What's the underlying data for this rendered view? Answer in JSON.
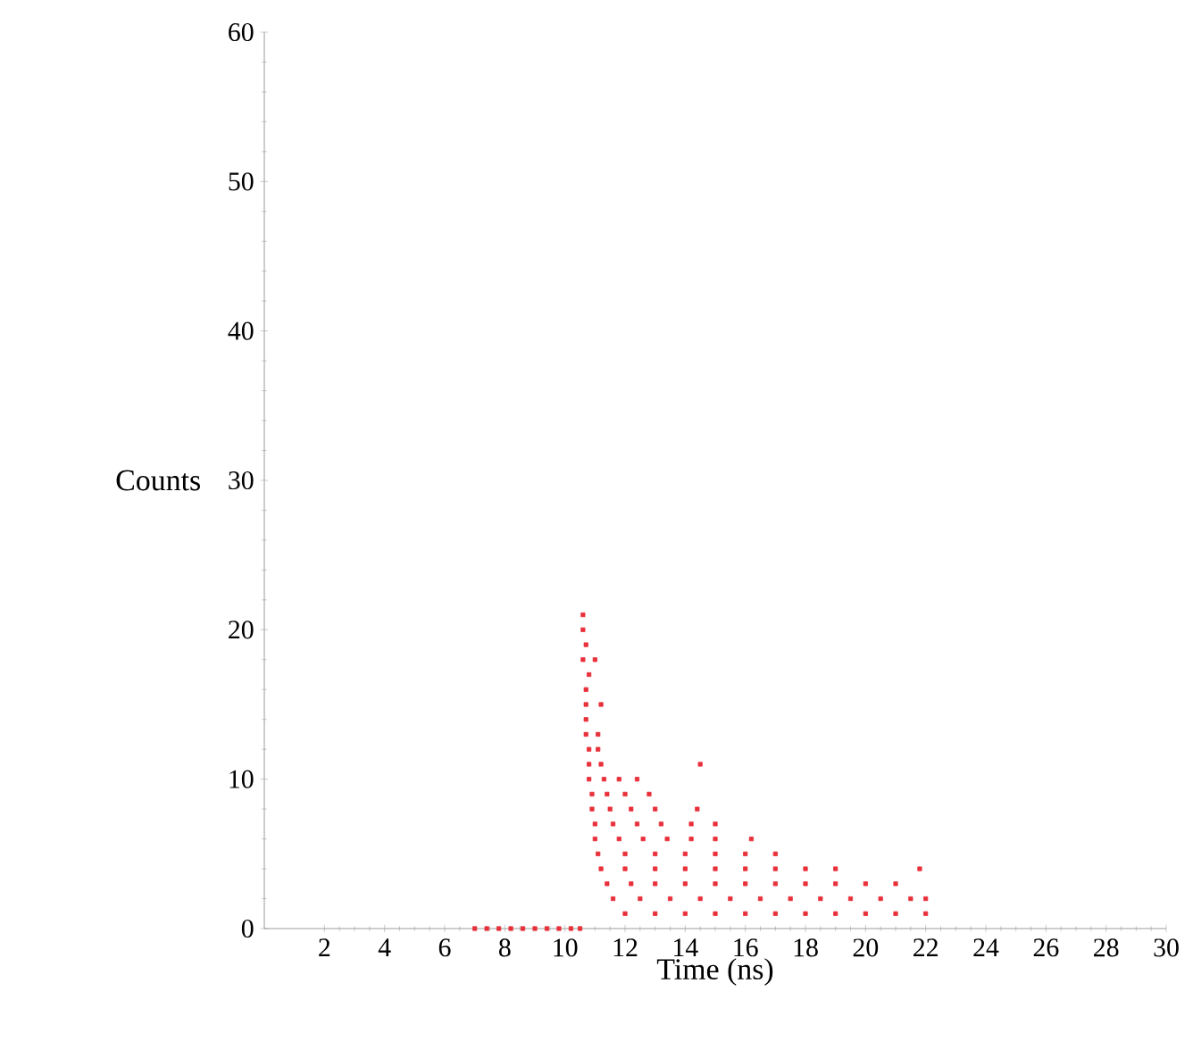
{
  "chart_data": {
    "type": "scatter",
    "xlabel": "Time (ns)",
    "ylabel": "Counts",
    "color": "#e8303a",
    "marker": "square",
    "grid": false,
    "xlim": [
      0,
      30
    ],
    "ylim": [
      0,
      60
    ],
    "xticks": [
      2,
      4,
      6,
      8,
      10,
      12,
      14,
      16,
      18,
      20,
      22,
      24,
      26,
      28,
      30
    ],
    "yticks": [
      0,
      10,
      20,
      30,
      40,
      50,
      60
    ],
    "x": [
      7.0,
      7.4,
      7.8,
      8.2,
      8.6,
      9.0,
      9.4,
      9.8,
      10.2,
      10.5,
      12,
      13,
      14,
      15,
      16,
      17,
      18,
      19,
      20,
      21,
      22,
      11.6,
      12.5,
      13.5,
      14.5,
      15.5,
      16.5,
      17.5,
      18.5,
      19.5,
      20.5,
      21.5,
      22,
      11.4,
      12.2,
      13,
      14,
      15,
      16,
      17,
      18,
      19,
      20,
      21,
      11.2,
      12,
      13,
      14,
      15,
      16,
      17,
      18,
      19,
      21.8,
      11.1,
      12,
      13,
      14,
      15,
      16,
      17,
      11,
      11.8,
      12.6,
      13.4,
      14.2,
      15,
      16.2,
      11,
      11.6,
      12.4,
      13.2,
      14.2,
      15,
      10.9,
      11.5,
      12.2,
      13,
      14.4,
      10.9,
      11.4,
      12,
      12.8,
      10.8,
      11.3,
      11.8,
      12.4,
      10.8,
      11.2,
      14.5,
      10.8,
      11.1,
      10.7,
      11.1,
      10.7,
      10.7,
      11.2,
      10.7,
      10.8,
      10.6,
      11.0,
      10.7,
      10.6,
      10.6
    ],
    "values": [
      0,
      0,
      0,
      0,
      0,
      0,
      0,
      0,
      0,
      0,
      1,
      1,
      1,
      1,
      1,
      1,
      1,
      1,
      1,
      1,
      1,
      2,
      2,
      2,
      2,
      2,
      2,
      2,
      2,
      2,
      2,
      2,
      2,
      3,
      3,
      3,
      3,
      3,
      3,
      3,
      3,
      3,
      3,
      3,
      4,
      4,
      4,
      4,
      4,
      4,
      4,
      4,
      4,
      4,
      5,
      5,
      5,
      5,
      5,
      5,
      5,
      6,
      6,
      6,
      6,
      6,
      6,
      6,
      7,
      7,
      7,
      7,
      7,
      7,
      8,
      8,
      8,
      8,
      8,
      9,
      9,
      9,
      9,
      10,
      10,
      10,
      10,
      11,
      11,
      11,
      12,
      12,
      13,
      13,
      14,
      15,
      15,
      16,
      17,
      18,
      18,
      19,
      20,
      21
    ]
  }
}
